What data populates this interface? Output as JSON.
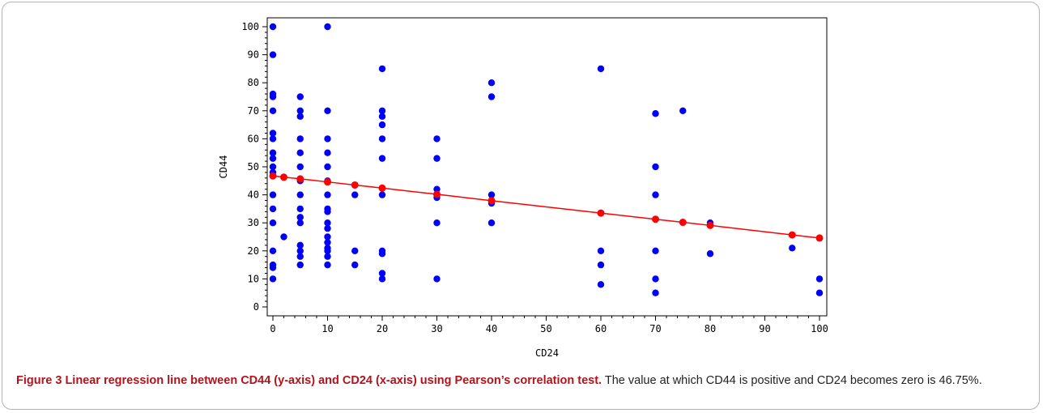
{
  "caption": {
    "label": "Figure 3",
    "title": "Linear regression line between CD44 (y-axis) and CD24 (x-axis) using Pearson’s correlation test.",
    "text": "The value at which CD44 is positive and CD24 becomes zero is 46.75%."
  },
  "chart_data": {
    "type": "scatter",
    "title": "",
    "xlabel": "CD24",
    "ylabel": "CD44",
    "xlim": [
      0,
      100
    ],
    "ylim": [
      0,
      100
    ],
    "xticks": [
      0,
      10,
      20,
      30,
      40,
      50,
      60,
      70,
      80,
      90,
      100
    ],
    "yticks": [
      0,
      10,
      20,
      30,
      40,
      50,
      60,
      70,
      80,
      90,
      100
    ],
    "grid": false,
    "colors": {
      "observed": "#0000ff",
      "fitted": "#ff0000",
      "line": "#ff0000"
    },
    "series": [
      {
        "kind": "observed",
        "points": [
          [
            0,
            100
          ],
          [
            0,
            90
          ],
          [
            0,
            76
          ],
          [
            0,
            75
          ],
          [
            0,
            70
          ],
          [
            0,
            62
          ],
          [
            0,
            60
          ],
          [
            0,
            55
          ],
          [
            0,
            53
          ],
          [
            0,
            50
          ],
          [
            0,
            48
          ],
          [
            0,
            40
          ],
          [
            0,
            35
          ],
          [
            0,
            30
          ],
          [
            0,
            20
          ],
          [
            0,
            15
          ],
          [
            0,
            14
          ],
          [
            0,
            10
          ],
          [
            2,
            25
          ],
          [
            5,
            75
          ],
          [
            5,
            70
          ],
          [
            5,
            68
          ],
          [
            5,
            60
          ],
          [
            5,
            55
          ],
          [
            5,
            50
          ],
          [
            5,
            45
          ],
          [
            5,
            40
          ],
          [
            5,
            35
          ],
          [
            5,
            32
          ],
          [
            5,
            30
          ],
          [
            5,
            22
          ],
          [
            5,
            20
          ],
          [
            5,
            18
          ],
          [
            5,
            15
          ],
          [
            10,
            100
          ],
          [
            10,
            70
          ],
          [
            10,
            60
          ],
          [
            10,
            55
          ],
          [
            10,
            50
          ],
          [
            10,
            45
          ],
          [
            10,
            40
          ],
          [
            10,
            35
          ],
          [
            10,
            34
          ],
          [
            10,
            30
          ],
          [
            10,
            28
          ],
          [
            10,
            25
          ],
          [
            10,
            23
          ],
          [
            10,
            21
          ],
          [
            10,
            20
          ],
          [
            10,
            18
          ],
          [
            10,
            15
          ],
          [
            15,
            40
          ],
          [
            15,
            20
          ],
          [
            15,
            15
          ],
          [
            20,
            85
          ],
          [
            20,
            70
          ],
          [
            20,
            68
          ],
          [
            20,
            65
          ],
          [
            20,
            60
          ],
          [
            20,
            53
          ],
          [
            20,
            40
          ],
          [
            20,
            20
          ],
          [
            20,
            19
          ],
          [
            20,
            12
          ],
          [
            20,
            10
          ],
          [
            30,
            60
          ],
          [
            30,
            53
          ],
          [
            30,
            42
          ],
          [
            30,
            40
          ],
          [
            30,
            39
          ],
          [
            30,
            30
          ],
          [
            30,
            10
          ],
          [
            40,
            80
          ],
          [
            40,
            75
          ],
          [
            40,
            40
          ],
          [
            40,
            37
          ],
          [
            40,
            30
          ],
          [
            60,
            85
          ],
          [
            60,
            20
          ],
          [
            60,
            15
          ],
          [
            60,
            8
          ],
          [
            70,
            69
          ],
          [
            70,
            50
          ],
          [
            70,
            40
          ],
          [
            70,
            20
          ],
          [
            70,
            10
          ],
          [
            70,
            5
          ],
          [
            75,
            70
          ],
          [
            80,
            30
          ],
          [
            80,
            19
          ],
          [
            95,
            21
          ],
          [
            100,
            10
          ],
          [
            100,
            5
          ]
        ]
      },
      {
        "kind": "fitted",
        "points": [
          [
            0,
            46.75
          ],
          [
            2,
            46.3
          ],
          [
            5,
            45.7
          ],
          [
            10,
            44.6
          ],
          [
            15,
            43.5
          ],
          [
            20,
            42.4
          ],
          [
            30,
            40.2
          ],
          [
            40,
            37.9
          ],
          [
            60,
            33.5
          ],
          [
            70,
            31.3
          ],
          [
            75,
            30.2
          ],
          [
            80,
            29.1
          ],
          [
            95,
            25.7
          ],
          [
            100,
            24.6
          ]
        ]
      }
    ]
  }
}
